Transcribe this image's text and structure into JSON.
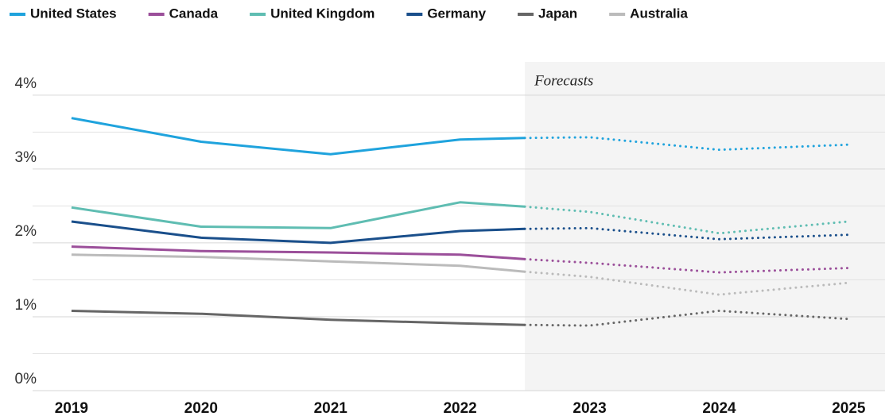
{
  "chart_data": {
    "type": "line",
    "forecast_label": "Forecasts",
    "forecast_start": 2022.5,
    "x": [
      2019,
      2020,
      2021,
      2022,
      2022.5,
      2023,
      2024,
      2025
    ],
    "xlim": [
      2018.7,
      2025.28
    ],
    "xticks": [
      2019,
      2020,
      2021,
      2022,
      2023,
      2024,
      2025
    ],
    "ylim": [
      0,
      4.45
    ],
    "yticks": [
      {
        "value": 0,
        "label": "0%"
      },
      {
        "value": 1,
        "label": "1%"
      },
      {
        "value": 2,
        "label": "2%"
      },
      {
        "value": 3,
        "label": "3%"
      },
      {
        "value": 4,
        "label": "4%"
      }
    ],
    "minor_yticks": [
      0.5,
      1.5,
      2.5,
      3.5
    ],
    "grid": true,
    "legend": "top",
    "series": [
      {
        "name": "United States",
        "color": "#1fa3dd",
        "values": [
          3.69,
          3.37,
          3.2,
          3.4,
          3.42,
          3.43,
          3.26,
          3.33
        ]
      },
      {
        "name": "Canada",
        "color": "#9b4f9a",
        "values": [
          1.95,
          1.89,
          1.87,
          1.84,
          1.78,
          1.73,
          1.6,
          1.66
        ]
      },
      {
        "name": "United Kingdom",
        "color": "#5fbdb2",
        "values": [
          2.48,
          2.22,
          2.2,
          2.55,
          2.49,
          2.42,
          2.13,
          2.29
        ]
      },
      {
        "name": "Germany",
        "color": "#1a4f8b",
        "values": [
          2.29,
          2.07,
          2.0,
          2.16,
          2.19,
          2.2,
          2.05,
          2.11
        ]
      },
      {
        "name": "Japan",
        "color": "#666666",
        "values": [
          1.08,
          1.04,
          0.96,
          0.91,
          0.89,
          0.88,
          1.08,
          0.97
        ]
      },
      {
        "name": "Australia",
        "color": "#bbbbbb",
        "values": [
          1.84,
          1.81,
          1.75,
          1.69,
          1.61,
          1.54,
          1.3,
          1.46
        ]
      }
    ]
  }
}
